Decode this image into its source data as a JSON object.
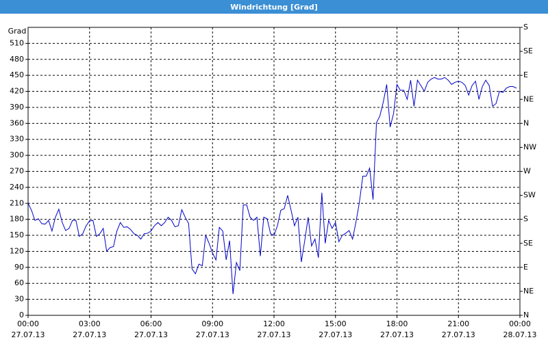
{
  "chart_data": {
    "type": "line",
    "title": "Windrichtung [Grad]",
    "ylabel": "Grad",
    "color": "#0000c8",
    "grid": true,
    "xlim": [
      0,
      1440
    ],
    "xticks": [
      {
        "value": 0,
        "label": "00:00\n27.07.13"
      },
      {
        "value": 180,
        "label": "03:00\n27.07.13"
      },
      {
        "value": 360,
        "label": "06:00\n27.07.13"
      },
      {
        "value": 540,
        "label": "09:00\n27.07.13"
      },
      {
        "value": 720,
        "label": "12:00\n27.07.13"
      },
      {
        "value": 900,
        "label": "15:00\n27.07.13"
      },
      {
        "value": 1080,
        "label": "18:00\n27.07.13"
      },
      {
        "value": 1260,
        "label": "21:00\n27.07.13"
      },
      {
        "value": 1440,
        "label": "00:00\n28.07.13"
      }
    ],
    "ylim": [
      0,
      540
    ],
    "yticks": [
      0,
      30,
      60,
      90,
      120,
      150,
      180,
      210,
      240,
      270,
      300,
      330,
      360,
      390,
      420,
      450,
      480,
      510
    ],
    "y2lim": [
      0,
      540
    ],
    "y2ticks": [
      {
        "value": 0,
        "label": "N"
      },
      {
        "value": 45,
        "label": "NE"
      },
      {
        "value": 90,
        "label": "E"
      },
      {
        "value": 135,
        "label": "SE"
      },
      {
        "value": 180,
        "label": "S"
      },
      {
        "value": 225,
        "label": "SW"
      },
      {
        "value": 270,
        "label": "W"
      },
      {
        "value": 315,
        "label": "NW"
      },
      {
        "value": 360,
        "label": "N"
      },
      {
        "value": 405,
        "label": "NE"
      },
      {
        "value": 450,
        "label": "E"
      },
      {
        "value": 495,
        "label": "SE"
      },
      {
        "value": 540,
        "label": "S"
      }
    ],
    "x": [
      0,
      10,
      20,
      30,
      40,
      50,
      60,
      70,
      80,
      90,
      100,
      110,
      120,
      130,
      140,
      150,
      160,
      170,
      180,
      190,
      200,
      210,
      220,
      230,
      240,
      250,
      260,
      270,
      280,
      290,
      300,
      310,
      320,
      330,
      340,
      350,
      360,
      370,
      380,
      390,
      400,
      410,
      420,
      430,
      440,
      450,
      460,
      470,
      480,
      490,
      500,
      510,
      520,
      530,
      540,
      550,
      560,
      570,
      580,
      590,
      600,
      610,
      620,
      630,
      640,
      650,
      660,
      670,
      680,
      690,
      700,
      710,
      720,
      730,
      740,
      750,
      760,
      770,
      780,
      790,
      800,
      810,
      820,
      830,
      840,
      850,
      860,
      870,
      880,
      890,
      900,
      910,
      920,
      930,
      940,
      950,
      960,
      970,
      980,
      990,
      1000,
      1010,
      1020,
      1030,
      1040,
      1050,
      1060,
      1070,
      1080,
      1090,
      1100,
      1110,
      1120,
      1130,
      1140,
      1150,
      1160,
      1170,
      1180,
      1190,
      1200,
      1210,
      1220,
      1230,
      1240,
      1250,
      1260,
      1270,
      1280,
      1290,
      1300,
      1310,
      1320,
      1330,
      1340,
      1350,
      1360,
      1370,
      1380,
      1390,
      1400,
      1410,
      1420,
      1430
    ],
    "values": [
      210,
      197,
      178,
      181,
      172,
      171,
      178,
      158,
      184,
      199,
      174,
      159,
      163,
      178,
      178,
      148,
      153,
      168,
      177,
      178,
      148,
      153,
      163,
      120,
      127,
      129,
      158,
      174,
      165,
      166,
      161,
      153,
      150,
      143,
      153,
      154,
      158,
      168,
      174,
      168,
      174,
      184,
      178,
      166,
      168,
      198,
      184,
      172,
      87,
      78,
      96,
      93,
      150,
      135,
      117,
      104,
      165,
      158,
      104,
      140,
      40,
      99,
      84,
      207,
      207,
      184,
      178,
      184,
      111,
      184,
      181,
      153,
      150,
      168,
      197,
      200,
      225,
      197,
      168,
      184,
      100,
      140,
      184,
      130,
      143,
      108,
      230,
      135,
      178,
      163,
      174,
      138,
      150,
      154,
      159,
      143,
      175,
      212,
      261,
      261,
      276,
      217,
      361,
      374,
      400,
      433,
      353,
      378,
      433,
      422,
      422,
      405,
      441,
      392,
      441,
      431,
      420,
      437,
      443,
      446,
      443,
      443,
      446,
      441,
      433,
      437,
      439,
      437,
      431,
      413,
      431,
      439,
      405,
      429,
      441,
      431,
      392,
      397,
      420,
      418,
      426,
      429,
      429,
      426
    ]
  }
}
